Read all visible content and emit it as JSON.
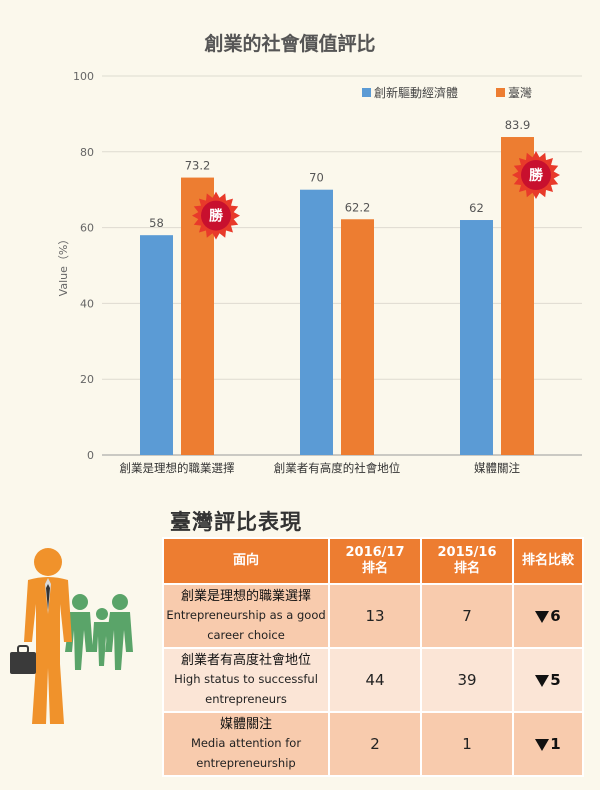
{
  "chart_data": {
    "type": "bar",
    "title": "創業的社會價值評比",
    "ylabel": "Value（%）",
    "ylim": [
      0,
      100
    ],
    "yticks": [
      0,
      20,
      40,
      60,
      80,
      100
    ],
    "categories": [
      "創業是理想的職業選擇",
      "創業者有高度的社會地位",
      "媒體關注"
    ],
    "series": [
      {
        "name": "創新驅動經濟體",
        "color": "#5b9bd5",
        "values": [
          58,
          70,
          62
        ],
        "labels": [
          "58",
          "70",
          "62"
        ]
      },
      {
        "name": "臺灣",
        "color": "#ed7d31",
        "values": [
          73.2,
          62.2,
          83.9
        ],
        "labels": [
          "73.2",
          "62.2",
          "83.9"
        ]
      }
    ],
    "legend_position": "top-right",
    "grid": true,
    "badges": [
      {
        "text": "勝",
        "category_index": 0
      },
      {
        "text": "勝",
        "category_index": 2
      }
    ]
  },
  "section_title": "臺灣評比表現",
  "table": {
    "headers": {
      "aspect": "面向",
      "y2016": "2016/17\n排名",
      "y2015": "2015/16\n排名",
      "compare": "排名比較"
    },
    "rows": [
      {
        "aspect_zh": "創業是理想的職業選擇",
        "aspect_en": "Entrepreneurship as a good career choice",
        "y2016": "13",
        "y2015": "7",
        "compare": "6"
      },
      {
        "aspect_zh": "創業者有高度社會地位",
        "aspect_en": "High status to successful entrepreneurs",
        "y2016": "44",
        "y2015": "39",
        "compare": "5"
      },
      {
        "aspect_zh": "媒體關注",
        "aspect_en": "Media attention for entrepreneurship",
        "y2016": "2",
        "y2015": "1",
        "compare": "1"
      }
    ]
  },
  "icons": {
    "people_illustration": "business-people-icon",
    "badge": "starburst-badge-icon",
    "rank_down": "triangle-down-icon"
  }
}
